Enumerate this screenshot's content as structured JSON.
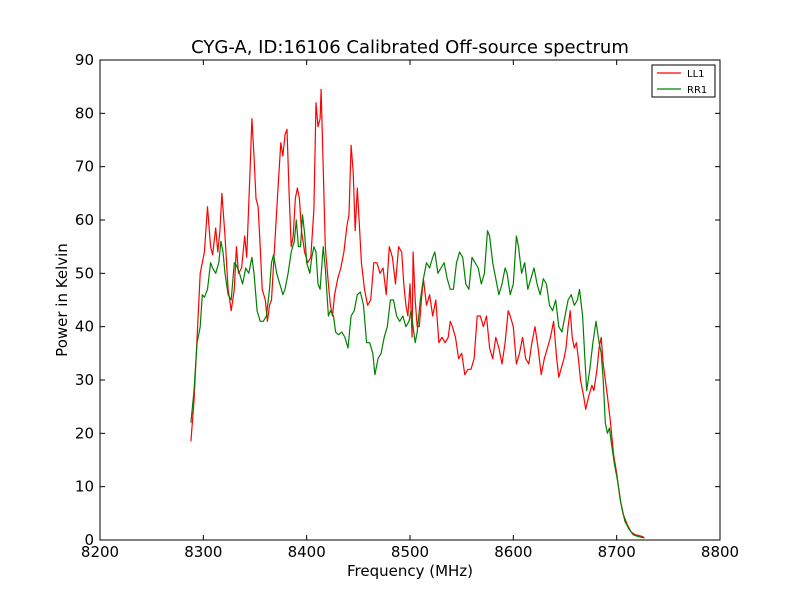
{
  "chart_data": {
    "type": "line",
    "title": "CYG-A, ID:16106 Calibrated Off-source spectrum",
    "xlabel": "Frequency (MHz)",
    "ylabel": "Power in Kelvin",
    "xlim": [
      8200,
      8800
    ],
    "ylim": [
      0,
      90
    ],
    "xticks": [
      8200,
      8300,
      8400,
      8500,
      8600,
      8700,
      8800
    ],
    "yticks": [
      0,
      10,
      20,
      30,
      40,
      50,
      60,
      70,
      80,
      90
    ],
    "grid": false,
    "legend_position": "top-right",
    "series": [
      {
        "name": "LL1",
        "color": "#ff0000",
        "points": [
          [
            8288,
            18.5
          ],
          [
            8291,
            26
          ],
          [
            8294,
            38
          ],
          [
            8297,
            50
          ],
          [
            8301,
            54
          ],
          [
            8304,
            62.5
          ],
          [
            8307,
            55
          ],
          [
            8309,
            53.5
          ],
          [
            8312,
            58.5
          ],
          [
            8314,
            54
          ],
          [
            8316,
            58
          ],
          [
            8318,
            65
          ],
          [
            8321,
            57
          ],
          [
            8324,
            47
          ],
          [
            8327,
            43
          ],
          [
            8330,
            47
          ],
          [
            8332,
            55
          ],
          [
            8334,
            50
          ],
          [
            8337,
            51
          ],
          [
            8340,
            57
          ],
          [
            8342,
            53
          ],
          [
            8345,
            68
          ],
          [
            8347,
            79
          ],
          [
            8349,
            72
          ],
          [
            8351,
            64
          ],
          [
            8353,
            62.5
          ],
          [
            8355,
            55
          ],
          [
            8357,
            47
          ],
          [
            8360,
            45
          ],
          [
            8362,
            41
          ],
          [
            8364,
            44
          ],
          [
            8366,
            45
          ],
          [
            8369,
            55
          ],
          [
            8372,
            65
          ],
          [
            8375,
            74.5
          ],
          [
            8377,
            72
          ],
          [
            8379,
            76
          ],
          [
            8381,
            77
          ],
          [
            8383,
            65
          ],
          [
            8385,
            55
          ],
          [
            8387,
            57
          ],
          [
            8389,
            64
          ],
          [
            8391,
            66
          ],
          [
            8393,
            64
          ],
          [
            8395,
            58
          ],
          [
            8398,
            54
          ],
          [
            8401,
            52
          ],
          [
            8404,
            53
          ],
          [
            8407,
            62
          ],
          [
            8409,
            82
          ],
          [
            8411,
            77.5
          ],
          [
            8413,
            79
          ],
          [
            8414,
            84.5
          ],
          [
            8416,
            70
          ],
          [
            8418,
            55
          ],
          [
            8421,
            48
          ],
          [
            8423,
            44
          ],
          [
            8425,
            42
          ],
          [
            8427,
            46
          ],
          [
            8430,
            49
          ],
          [
            8433,
            51
          ],
          [
            8436,
            54
          ],
          [
            8439,
            59
          ],
          [
            8441,
            61
          ],
          [
            8443,
            74
          ],
          [
            8445,
            69
          ],
          [
            8447,
            58
          ],
          [
            8449,
            66
          ],
          [
            8451,
            59
          ],
          [
            8453,
            52
          ],
          [
            8456,
            47
          ],
          [
            8459,
            44
          ],
          [
            8462,
            45
          ],
          [
            8465,
            52
          ],
          [
            8468,
            52
          ],
          [
            8471,
            50
          ],
          [
            8474,
            51
          ],
          [
            8477,
            46
          ],
          [
            8480,
            55
          ],
          [
            8483,
            53
          ],
          [
            8486,
            48
          ],
          [
            8489,
            55
          ],
          [
            8492,
            54
          ],
          [
            8494,
            48
          ],
          [
            8496,
            44
          ],
          [
            8498,
            42
          ],
          [
            8500,
            48
          ],
          [
            8502,
            38
          ],
          [
            8503,
            54
          ],
          [
            8505,
            45
          ],
          [
            8507,
            40
          ],
          [
            8509,
            40
          ],
          [
            8511,
            45
          ],
          [
            8513,
            49
          ],
          [
            8516,
            44
          ],
          [
            8519,
            46
          ],
          [
            8522,
            42
          ],
          [
            8525,
            45
          ],
          [
            8528,
            37
          ],
          [
            8531,
            38
          ],
          [
            8534,
            37
          ],
          [
            8537,
            38
          ],
          [
            8539,
            41
          ],
          [
            8541,
            40
          ],
          [
            8544,
            38
          ],
          [
            8547,
            34
          ],
          [
            8550,
            35
          ],
          [
            8553,
            31
          ],
          [
            8556,
            32
          ],
          [
            8559,
            32
          ],
          [
            8562,
            34
          ],
          [
            8565,
            42
          ],
          [
            8568,
            42
          ],
          [
            8571,
            40
          ],
          [
            8574,
            42
          ],
          [
            8577,
            36
          ],
          [
            8580,
            34
          ],
          [
            8583,
            38
          ],
          [
            8586,
            36
          ],
          [
            8589,
            33
          ],
          [
            8592,
            37
          ],
          [
            8595,
            43
          ],
          [
            8597,
            42
          ],
          [
            8600,
            40
          ],
          [
            8603,
            33
          ],
          [
            8606,
            35
          ],
          [
            8609,
            38
          ],
          [
            8612,
            34
          ],
          [
            8615,
            33
          ],
          [
            8618,
            37
          ],
          [
            8621,
            40
          ],
          [
            8624,
            36
          ],
          [
            8627,
            31
          ],
          [
            8630,
            34
          ],
          [
            8633,
            36
          ],
          [
            8636,
            38
          ],
          [
            8639,
            41
          ],
          [
            8642,
            34
          ],
          [
            8644,
            30.5
          ],
          [
            8646,
            32
          ],
          [
            8649,
            34
          ],
          [
            8651,
            36
          ],
          [
            8653,
            40
          ],
          [
            8655,
            43
          ],
          [
            8657,
            38
          ],
          [
            8659,
            36
          ],
          [
            8661,
            37
          ],
          [
            8663,
            34
          ],
          [
            8665,
            30
          ],
          [
            8668,
            27
          ],
          [
            8670,
            24.5
          ],
          [
            8673,
            27
          ],
          [
            8676,
            29
          ],
          [
            8678,
            28
          ],
          [
            8681,
            32
          ],
          [
            8683,
            36
          ],
          [
            8685,
            38
          ],
          [
            8687,
            33
          ],
          [
            8689,
            30
          ],
          [
            8691,
            27
          ],
          [
            8694,
            22
          ],
          [
            8697,
            16
          ],
          [
            8700,
            12.5
          ],
          [
            8703,
            8
          ],
          [
            8706,
            5
          ],
          [
            8710,
            3
          ],
          [
            8714,
            1.5
          ],
          [
            8718,
            1
          ],
          [
            8722,
            0.8
          ],
          [
            8726,
            0.6
          ]
        ]
      },
      {
        "name": "RR1",
        "color": "#008000",
        "points": [
          [
            8288,
            22
          ],
          [
            8291,
            28
          ],
          [
            8294,
            37
          ],
          [
            8297,
            40
          ],
          [
            8299,
            46
          ],
          [
            8301,
            45.5
          ],
          [
            8304,
            47
          ],
          [
            8307,
            52
          ],
          [
            8309,
            51
          ],
          [
            8312,
            50
          ],
          [
            8315,
            52
          ],
          [
            8317,
            56
          ],
          [
            8319,
            54
          ],
          [
            8321,
            50
          ],
          [
            8324,
            46
          ],
          [
            8327,
            45
          ],
          [
            8330,
            52
          ],
          [
            8332,
            51.5
          ],
          [
            8335,
            50
          ],
          [
            8338,
            48
          ],
          [
            8341,
            51
          ],
          [
            8344,
            50
          ],
          [
            8347,
            53
          ],
          [
            8349,
            50
          ],
          [
            8352,
            43
          ],
          [
            8355,
            41
          ],
          [
            8358,
            41
          ],
          [
            8361,
            42
          ],
          [
            8364,
            47
          ],
          [
            8366,
            52
          ],
          [
            8368,
            53.5
          ],
          [
            8371,
            50
          ],
          [
            8374,
            48
          ],
          [
            8377,
            46
          ],
          [
            8379,
            47
          ],
          [
            8382,
            50
          ],
          [
            8385,
            54
          ],
          [
            8388,
            56
          ],
          [
            8390,
            60
          ],
          [
            8392,
            55
          ],
          [
            8394,
            55
          ],
          [
            8396,
            61
          ],
          [
            8398,
            57.5
          ],
          [
            8400,
            52
          ],
          [
            8403,
            50
          ],
          [
            8405,
            53
          ],
          [
            8407,
            55
          ],
          [
            8409,
            54
          ],
          [
            8411,
            48
          ],
          [
            8413,
            47
          ],
          [
            8416,
            55
          ],
          [
            8418,
            51
          ],
          [
            8421,
            42
          ],
          [
            8423,
            43
          ],
          [
            8426,
            42
          ],
          [
            8428,
            39
          ],
          [
            8431,
            38.5
          ],
          [
            8434,
            39
          ],
          [
            8437,
            38
          ],
          [
            8440,
            36
          ],
          [
            8443,
            42
          ],
          [
            8446,
            43
          ],
          [
            8449,
            46
          ],
          [
            8452,
            46.5
          ],
          [
            8455,
            44
          ],
          [
            8458,
            37
          ],
          [
            8461,
            37
          ],
          [
            8464,
            35
          ],
          [
            8466,
            31
          ],
          [
            8469,
            34
          ],
          [
            8472,
            35
          ],
          [
            8475,
            38
          ],
          [
            8478,
            40
          ],
          [
            8481,
            45
          ],
          [
            8484,
            45
          ],
          [
            8487,
            42
          ],
          [
            8490,
            41
          ],
          [
            8493,
            42
          ],
          [
            8496,
            40
          ],
          [
            8499,
            41
          ],
          [
            8501,
            43
          ],
          [
            8503,
            40
          ],
          [
            8505,
            37
          ],
          [
            8507,
            39
          ],
          [
            8510,
            45
          ],
          [
            8513,
            49
          ],
          [
            8516,
            52
          ],
          [
            8519,
            51
          ],
          [
            8522,
            53
          ],
          [
            8524,
            54
          ],
          [
            8527,
            50
          ],
          [
            8530,
            51
          ],
          [
            8533,
            52
          ],
          [
            8536,
            49
          ],
          [
            8539,
            47
          ],
          [
            8542,
            47
          ],
          [
            8545,
            52
          ],
          [
            8548,
            54
          ],
          [
            8551,
            53
          ],
          [
            8554,
            48
          ],
          [
            8557,
            47
          ],
          [
            8560,
            53
          ],
          [
            8563,
            52
          ],
          [
            8566,
            51
          ],
          [
            8569,
            48
          ],
          [
            8572,
            50
          ],
          [
            8575,
            58
          ],
          [
            8577,
            57
          ],
          [
            8580,
            52
          ],
          [
            8583,
            49
          ],
          [
            8586,
            46
          ],
          [
            8589,
            48
          ],
          [
            8592,
            51
          ],
          [
            8594,
            50
          ],
          [
            8597,
            46
          ],
          [
            8600,
            48
          ],
          [
            8603,
            57
          ],
          [
            8605,
            55
          ],
          [
            8608,
            50
          ],
          [
            8611,
            52
          ],
          [
            8614,
            47
          ],
          [
            8617,
            49
          ],
          [
            8620,
            51
          ],
          [
            8623,
            48
          ],
          [
            8626,
            46
          ],
          [
            8629,
            49
          ],
          [
            8632,
            48
          ],
          [
            8635,
            44
          ],
          [
            8638,
            43
          ],
          [
            8641,
            45
          ],
          [
            8644,
            40
          ],
          [
            8647,
            39
          ],
          [
            8650,
            42
          ],
          [
            8653,
            45
          ],
          [
            8656,
            46
          ],
          [
            8659,
            44
          ],
          [
            8662,
            45
          ],
          [
            8664,
            47
          ],
          [
            8667,
            42
          ],
          [
            8669,
            35
          ],
          [
            8671,
            28
          ],
          [
            8674,
            32
          ],
          [
            8677,
            37
          ],
          [
            8680,
            41
          ],
          [
            8683,
            37
          ],
          [
            8685,
            35
          ],
          [
            8687,
            30
          ],
          [
            8689,
            22
          ],
          [
            8691,
            20
          ],
          [
            8693,
            21
          ],
          [
            8695,
            18
          ],
          [
            8698,
            14
          ],
          [
            8701,
            11
          ],
          [
            8704,
            7
          ],
          [
            8708,
            3.5
          ],
          [
            8712,
            2
          ],
          [
            8716,
            1
          ],
          [
            8720,
            0.7
          ],
          [
            8724,
            0.5
          ],
          [
            8727,
            0.4
          ]
        ]
      }
    ]
  }
}
